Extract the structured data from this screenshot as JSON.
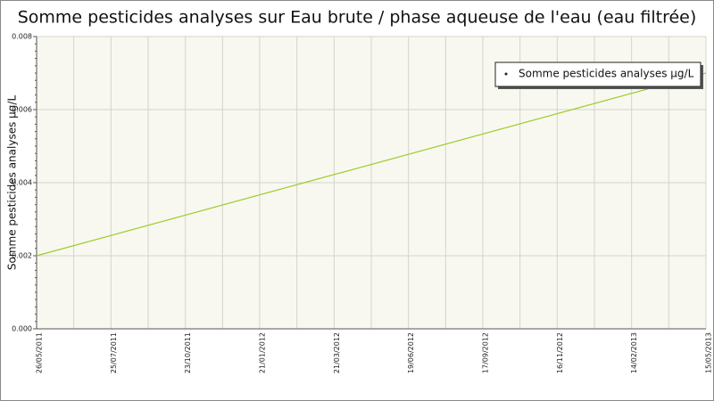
{
  "chart_data": {
    "type": "line",
    "title": "Somme pesticides analyses sur Eau brute / phase aqueuse de l'eau (eau filtrée)",
    "y_label": "Somme pesticides analyses µg/L",
    "x": [
      "26/05/2011",
      "15/05/2013"
    ],
    "xticks": [
      "26/05/2011",
      "25/07/2011",
      "23/10/2011",
      "21/01/2012",
      "21/03/2012",
      "19/06/2012",
      "17/09/2012",
      "16/11/2012",
      "14/02/2013",
      "15/05/2013"
    ],
    "series": [
      {
        "name": "Somme pesticides analyses µg/L",
        "color": "#9ccc2c",
        "values": [
          0.002,
          0.007
        ]
      }
    ],
    "ylim": [
      0,
      0.008
    ],
    "yticks": [
      {
        "value": 0,
        "label": "0.000"
      },
      {
        "value": 0.002,
        "label": "0.002"
      },
      {
        "value": 0.004,
        "label": "0.004"
      },
      {
        "value": 0.006,
        "label": "0.006"
      },
      {
        "value": 0.008,
        "label": "0.008"
      }
    ],
    "grid": true
  }
}
